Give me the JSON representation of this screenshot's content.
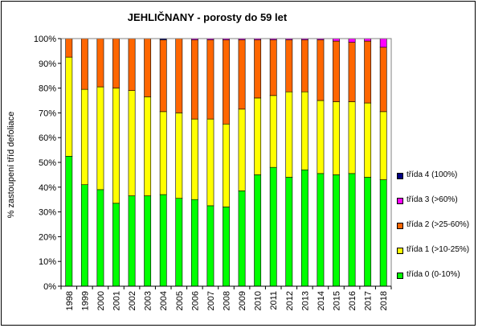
{
  "chart_data": {
    "type": "bar",
    "stacked": true,
    "title": "JEHLIČNANY  - porosty do 59 let",
    "xlabel": "",
    "ylabel": "% zastoupení tříd defoliace",
    "ylim": [
      0,
      100
    ],
    "yticks": [
      "0%",
      "10%",
      "20%",
      "30%",
      "40%",
      "50%",
      "60%",
      "70%",
      "80%",
      "90%",
      "100%"
    ],
    "grid": false,
    "legend_position": "right",
    "categories": [
      "1998",
      "1999",
      "2000",
      "2001",
      "2002",
      "2003",
      "2004",
      "2005",
      "2006",
      "2007",
      "2008",
      "2009",
      "2010",
      "2011",
      "2012",
      "2013",
      "2014",
      "2015",
      "2016",
      "2017",
      "2018"
    ],
    "series": [
      {
        "name": "třída 0 (0-10%)",
        "color": "#00ff00",
        "values": [
          52.5,
          41,
          39,
          33.5,
          36.5,
          36.5,
          37,
          35.5,
          35,
          32.5,
          32,
          38.5,
          45,
          48,
          44,
          47,
          45.5,
          45,
          45.5,
          44,
          43
        ]
      },
      {
        "name": "třída 1 (>10-25%)",
        "color": "#ffff00",
        "values": [
          40,
          38.5,
          41.5,
          46.5,
          42.5,
          40,
          33.5,
          34.5,
          32.5,
          35,
          33.5,
          33,
          31,
          29,
          34.5,
          31.5,
          29.5,
          29.5,
          29,
          30,
          27.5
        ]
      },
      {
        "name": "třída 2 (>25-60%)",
        "color": "#ff6600",
        "values": [
          7.5,
          20.5,
          19.5,
          20,
          21,
          23.5,
          29,
          30,
          32,
          32,
          34,
          28,
          23.5,
          22.5,
          21,
          21,
          24.5,
          24.5,
          24,
          25,
          26
        ]
      },
      {
        "name": "třída 3 (>60%)",
        "color": "#ff00ff",
        "values": [
          0,
          0,
          0,
          0,
          0,
          0,
          0,
          0,
          0.5,
          0.5,
          0.5,
          0.5,
          0.5,
          0.5,
          0.5,
          0.5,
          0.5,
          1,
          1.5,
          1,
          3.5
        ]
      },
      {
        "name": "třída 4 (100%)",
        "color": "#000080",
        "values": [
          0,
          0,
          0,
          0,
          0,
          0,
          0.5,
          0,
          0,
          0,
          0,
          0,
          0,
          0,
          0,
          0,
          0,
          0,
          0,
          0,
          0
        ]
      }
    ]
  }
}
